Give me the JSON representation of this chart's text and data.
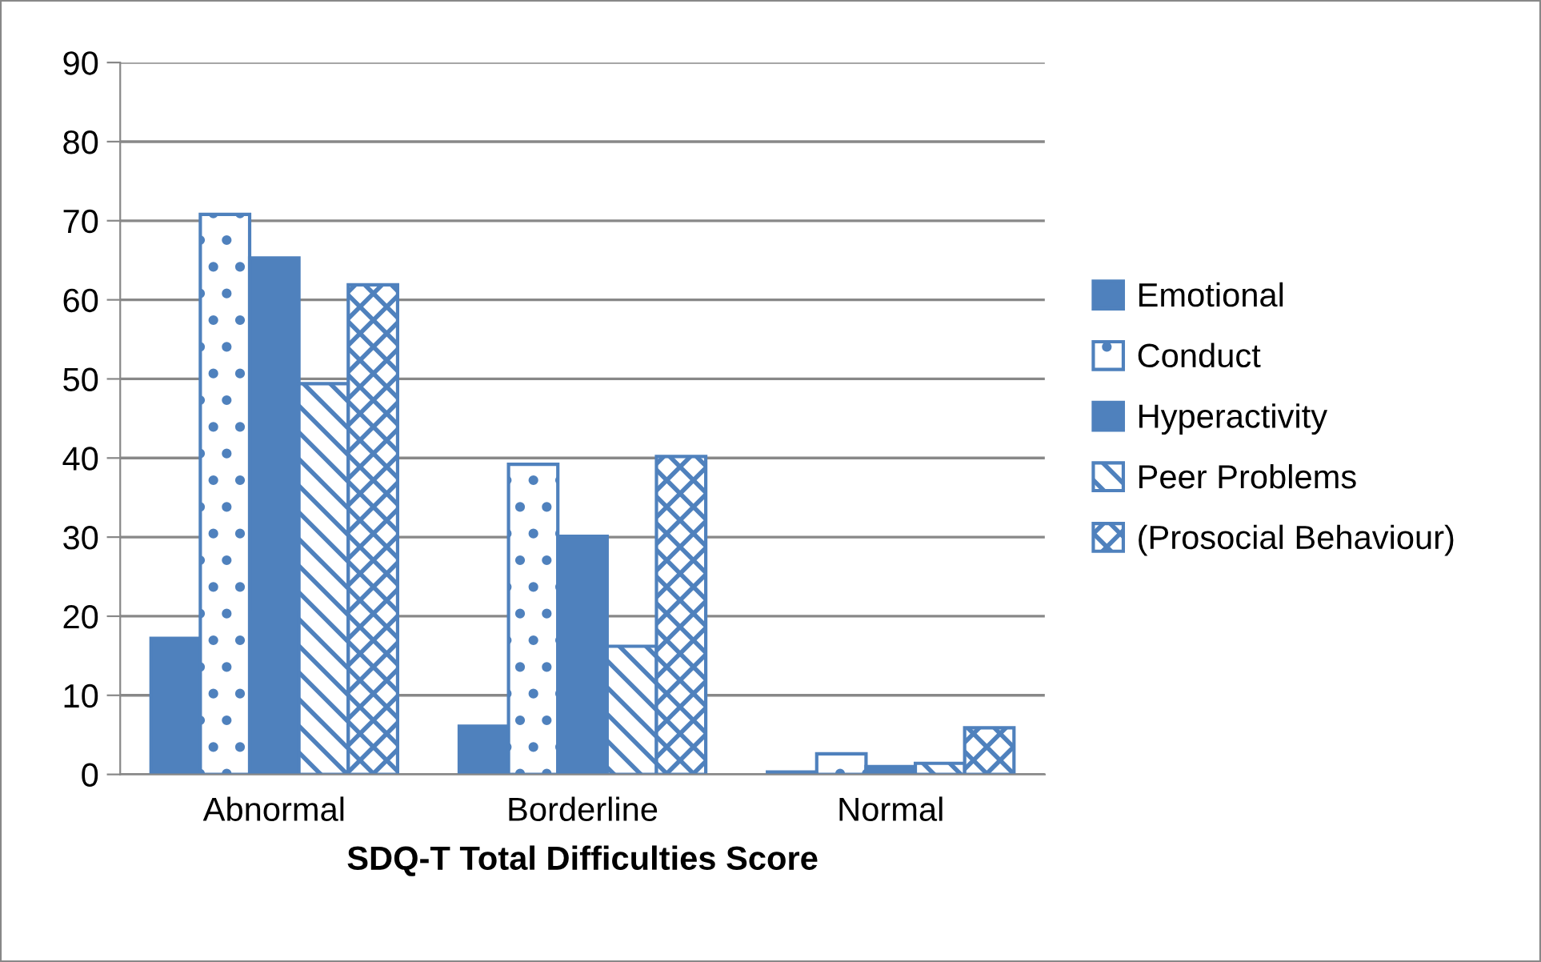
{
  "chart_data": {
    "type": "bar",
    "xlabel": "SDQ-T Total Difficulties Score",
    "categories": [
      "Abnormal",
      "Borderline",
      "Normal"
    ],
    "series": [
      {
        "name": "Emotional",
        "color": "#4f81bd",
        "values": [
          17.2,
          6.1,
          0.3
        ]
      },
      {
        "name": "Conduct",
        "color": "#4f81bd",
        "values": [
          70.8,
          39.2,
          2.6
        ]
      },
      {
        "name": "Hyperactivity",
        "color": "#4f81bd",
        "values": [
          65.3,
          30.1,
          1.0
        ]
      },
      {
        "name": "Peer Problems",
        "color": "#4f81bd",
        "values": [
          49.4,
          16.2,
          1.4
        ]
      },
      {
        "name": "(Prosocial Behaviour)",
        "color": "#4f81bd",
        "values": [
          61.9,
          40.2,
          5.9
        ]
      }
    ],
    "ylim": [
      0,
      90
    ],
    "yticks": [
      0,
      10,
      20,
      30,
      40,
      50,
      60,
      70,
      80,
      90
    ],
    "grid": "y",
    "legend": "right"
  }
}
